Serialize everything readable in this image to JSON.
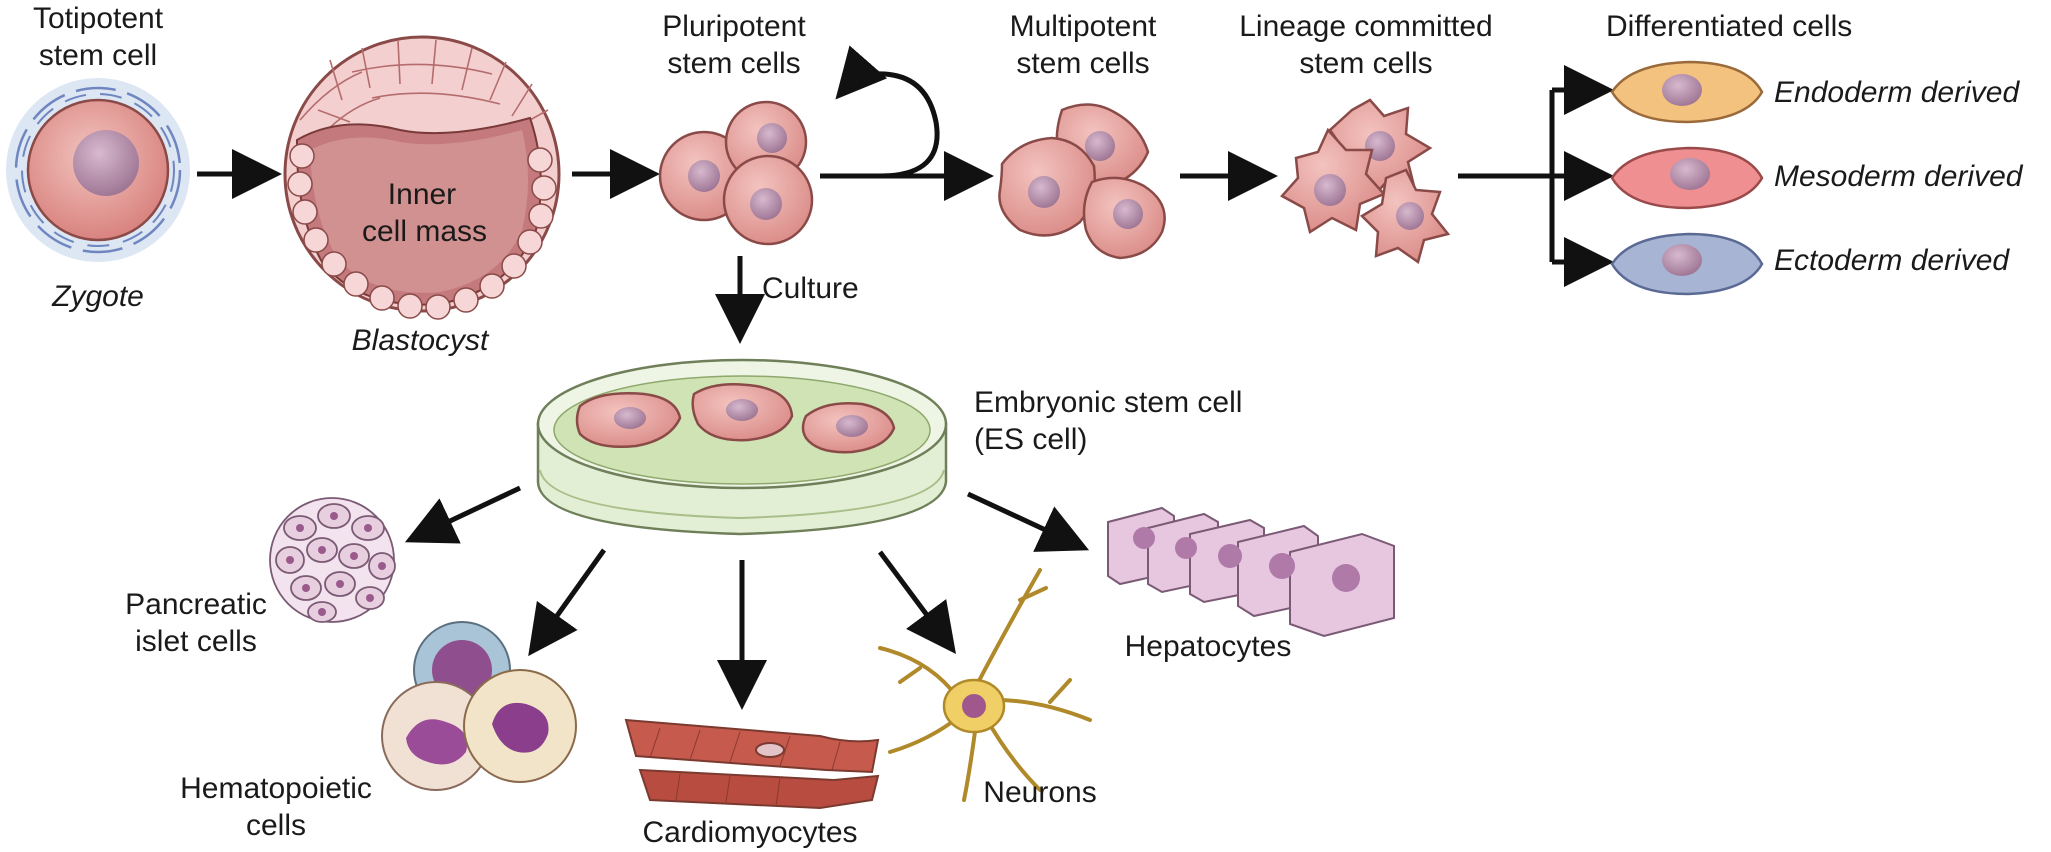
{
  "labels": {
    "totipotent": "Totipotent\nstem cell",
    "zygote": "Zygote",
    "inner_cell_mass": "Inner\ncell mass",
    "blastocyst": "Blastocyst",
    "pluripotent": "Pluripotent\nstem cells",
    "multipotent": "Multipotent\nstem cells",
    "lineage": "Lineage committed\nstem cells",
    "differentiated": "Differentiated cells",
    "endoderm": "Endoderm derived",
    "mesoderm": "Mesoderm derived",
    "ectoderm": "Ectoderm derived",
    "culture": "Culture",
    "es_cell": "Embryonic stem cell\n(ES cell)",
    "pancreatic": "Pancreatic\nislet cells",
    "hematopoietic": "Hematopoietic\ncells",
    "cardiomyocytes": "Cardiomyocytes",
    "neurons": "Neurons",
    "hepatocytes": "Hepatocytes"
  },
  "colors": {
    "arrow": "#111111",
    "cell_pink": "#e8a3a0",
    "cell_pink_edge": "#8a4a48",
    "nucleus": "#b78cad",
    "endoderm": "#f2c27e",
    "mesoderm": "#ef8f92",
    "ectoderm": "#a8b4d4",
    "dish_green": "#cfe3b4",
    "neuron": "#f0cf66",
    "hepatocyte": "#e7c6e0",
    "islet": "#e8cfe0"
  }
}
